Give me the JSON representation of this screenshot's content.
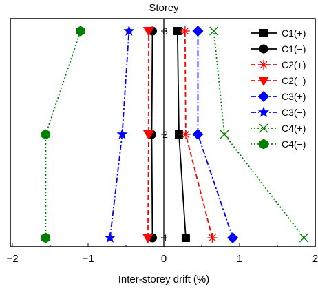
{
  "chart_data": {
    "type": "line",
    "title": "Storey",
    "xlabel": "Inter-storey drift (%)",
    "ylabel": "",
    "xlim": [
      -2,
      2
    ],
    "xticks": [
      -2,
      -1,
      0,
      1,
      2
    ],
    "xtick_labels": [
      "−2",
      "−1",
      "0",
      "1",
      "2"
    ],
    "ylim": [
      0.95,
      3.1
    ],
    "storeys": [
      1,
      2,
      3
    ],
    "storey_labels": [
      "1",
      "2",
      "3"
    ],
    "legend_position": "top-right",
    "grid": false,
    "series": [
      {
        "name": "C1(+)",
        "color": "#000000",
        "dash": "solid",
        "marker": "square",
        "x": [
          0.29,
          0.2,
          0.18
        ],
        "y": [
          1,
          2,
          3
        ]
      },
      {
        "name": "C1(−)",
        "color": "#000000",
        "dash": "solid",
        "marker": "circle",
        "x": [
          -0.15,
          -0.16,
          -0.15
        ],
        "y": [
          1,
          2,
          3
        ]
      },
      {
        "name": "C2(+)",
        "color": "#ff0000",
        "dash": "dash",
        "marker": "asterisk",
        "x": [
          0.64,
          0.29,
          0.28
        ],
        "y": [
          1,
          2,
          3
        ]
      },
      {
        "name": "C2(−)",
        "color": "#ff0000",
        "dash": "dash",
        "marker": "triangle-down",
        "x": [
          -0.21,
          -0.2,
          -0.2
        ],
        "y": [
          1,
          2,
          3
        ]
      },
      {
        "name": "C3(+)",
        "color": "#0000ff",
        "dash": "dashdot",
        "marker": "diamond",
        "x": [
          0.91,
          0.45,
          0.45
        ],
        "y": [
          1,
          2,
          3
        ]
      },
      {
        "name": "C3(−)",
        "color": "#0000ff",
        "dash": "dashdot",
        "marker": "star",
        "x": [
          -0.71,
          -0.55,
          -0.46
        ],
        "y": [
          1,
          2,
          3
        ]
      },
      {
        "name": "C4(+)",
        "color": "#008000",
        "dash": "dot",
        "marker": "x",
        "x": [
          1.85,
          0.8,
          0.66
        ],
        "y": [
          1,
          2,
          3
        ]
      },
      {
        "name": "C4(−)",
        "color": "#008000",
        "dash": "dot",
        "marker": "hexagon",
        "x": [
          -1.56,
          -1.56,
          -1.1
        ],
        "y": [
          1,
          2,
          3
        ]
      }
    ]
  }
}
